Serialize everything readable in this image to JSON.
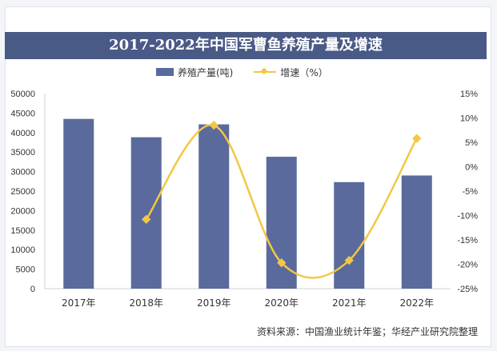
{
  "chart_data": {
    "type": "bar",
    "title": "2017-2022年中国军曹鱼养殖产量及增速",
    "categories": [
      "2017年",
      "2018年",
      "2019年",
      "2020年",
      "2021年",
      "2022年"
    ],
    "series": [
      {
        "name": "养殖产量(吨)",
        "type": "bar",
        "axis": "left",
        "color": "#5a6a9c",
        "values": [
          43500,
          38800,
          42100,
          33800,
          27300,
          29000
        ]
      },
      {
        "name": "增速（%）",
        "type": "line",
        "axis": "right",
        "color": "#f2c744",
        "values": [
          null,
          -10.8,
          8.5,
          -19.7,
          -19.2,
          5.8
        ]
      }
    ],
    "y_left": {
      "min": 0,
      "max": 50000,
      "ticks": [
        "0",
        "5000",
        "10000",
        "15000",
        "20000",
        "25000",
        "30000",
        "35000",
        "40000",
        "45000",
        "50000"
      ]
    },
    "y_right": {
      "min": -25,
      "max": 15,
      "ticks": [
        "-25%",
        "-20%",
        "-15%",
        "-10%",
        "-5%",
        "0%",
        "5%",
        "10%",
        "15%"
      ]
    },
    "grid": false,
    "legend": "top"
  },
  "source": "资料来源：中国渔业统计年鉴；华经产业研究院整理"
}
